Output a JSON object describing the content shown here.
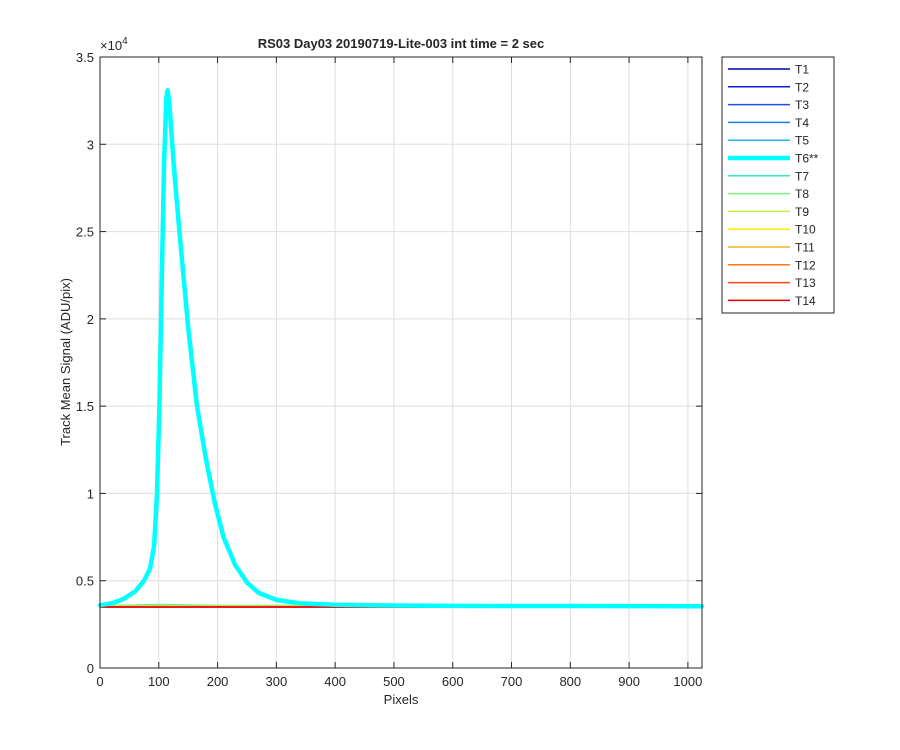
{
  "chart_data": {
    "type": "line",
    "title": "RS03 Day03 20190719-Lite-003 int time = 2 sec",
    "xlabel": "Pixels",
    "ylabel": "Track Mean Signal (ADU/pix)",
    "y_exponent_label": "×10",
    "y_exponent_power": "4",
    "xlim": [
      0,
      1024
    ],
    "ylim": [
      0,
      35000
    ],
    "x_ticks": [
      0,
      100,
      200,
      300,
      400,
      500,
      600,
      700,
      800,
      900,
      1000
    ],
    "x_tick_labels": [
      "0",
      "100",
      "200",
      "300",
      "400",
      "500",
      "600",
      "700",
      "800",
      "900",
      "1000"
    ],
    "y_ticks": [
      0,
      5000,
      10000,
      15000,
      20000,
      25000,
      30000,
      35000
    ],
    "y_tick_labels": [
      "0",
      "0.5",
      "1",
      "1.5",
      "2",
      "2.5",
      "3",
      "3.5"
    ],
    "grid": true,
    "legend_position": "outside-right",
    "series": [
      {
        "name": "T1",
        "color": "#0000a8",
        "width": 1.5,
        "values": [
          [
            0,
            3520
          ],
          [
            1024,
            3520
          ]
        ]
      },
      {
        "name": "T2",
        "color": "#0a1ed8",
        "width": 1.5,
        "values": [
          [
            0,
            3520
          ],
          [
            1024,
            3520
          ]
        ]
      },
      {
        "name": "T3",
        "color": "#1e50e6",
        "width": 1.5,
        "values": [
          [
            0,
            3520
          ],
          [
            1024,
            3520
          ]
        ]
      },
      {
        "name": "T4",
        "color": "#1e7ee6",
        "width": 1.5,
        "values": [
          [
            0,
            3520
          ],
          [
            1024,
            3520
          ]
        ]
      },
      {
        "name": "T5",
        "color": "#1eb4f0",
        "width": 1.5,
        "values": [
          [
            0,
            3530
          ],
          [
            1024,
            3530
          ]
        ]
      },
      {
        "name": "T6**",
        "color": "#00ffff",
        "width": 4.5,
        "values": [
          [
            0,
            3600
          ],
          [
            20,
            3700
          ],
          [
            40,
            3950
          ],
          [
            60,
            4400
          ],
          [
            75,
            5000
          ],
          [
            85,
            5700
          ],
          [
            92,
            7000
          ],
          [
            97,
            10000
          ],
          [
            101,
            15000
          ],
          [
            105,
            22000
          ],
          [
            109,
            29000
          ],
          [
            113,
            32700
          ],
          [
            115,
            33100
          ],
          [
            118,
            32300
          ],
          [
            125,
            29000
          ],
          [
            135,
            25000
          ],
          [
            150,
            19500
          ],
          [
            165,
            15000
          ],
          [
            180,
            12000
          ],
          [
            195,
            9500
          ],
          [
            210,
            7500
          ],
          [
            230,
            5900
          ],
          [
            250,
            4900
          ],
          [
            270,
            4300
          ],
          [
            300,
            3900
          ],
          [
            340,
            3700
          ],
          [
            400,
            3620
          ],
          [
            500,
            3580
          ],
          [
            600,
            3560
          ],
          [
            800,
            3550
          ],
          [
            1024,
            3540
          ]
        ]
      },
      {
        "name": "T7",
        "color": "#32e6c8",
        "width": 1.5,
        "values": [
          [
            0,
            3560
          ],
          [
            100,
            3640
          ],
          [
            200,
            3580
          ],
          [
            1024,
            3550
          ]
        ]
      },
      {
        "name": "T8",
        "color": "#82f082",
        "width": 1.5,
        "values": [
          [
            0,
            3560
          ],
          [
            100,
            3620
          ],
          [
            200,
            3570
          ],
          [
            1024,
            3550
          ]
        ]
      },
      {
        "name": "T9",
        "color": "#c8f03c",
        "width": 1.5,
        "values": [
          [
            0,
            3540
          ],
          [
            1024,
            3540
          ]
        ]
      },
      {
        "name": "T10",
        "color": "#ffec00",
        "width": 1.5,
        "values": [
          [
            0,
            3530
          ],
          [
            1024,
            3530
          ]
        ]
      },
      {
        "name": "T11",
        "color": "#f0b41e",
        "width": 1.5,
        "values": [
          [
            0,
            3520
          ],
          [
            1024,
            3520
          ]
        ]
      },
      {
        "name": "T12",
        "color": "#ff7814",
        "width": 1.5,
        "values": [
          [
            0,
            3510
          ],
          [
            1024,
            3510
          ]
        ]
      },
      {
        "name": "T13",
        "color": "#ff4614",
        "width": 1.5,
        "values": [
          [
            0,
            3500
          ],
          [
            1024,
            3500
          ]
        ]
      },
      {
        "name": "T14",
        "color": "#e60000",
        "width": 1.5,
        "values": [
          [
            0,
            3490
          ],
          [
            1024,
            3490
          ]
        ]
      }
    ]
  }
}
